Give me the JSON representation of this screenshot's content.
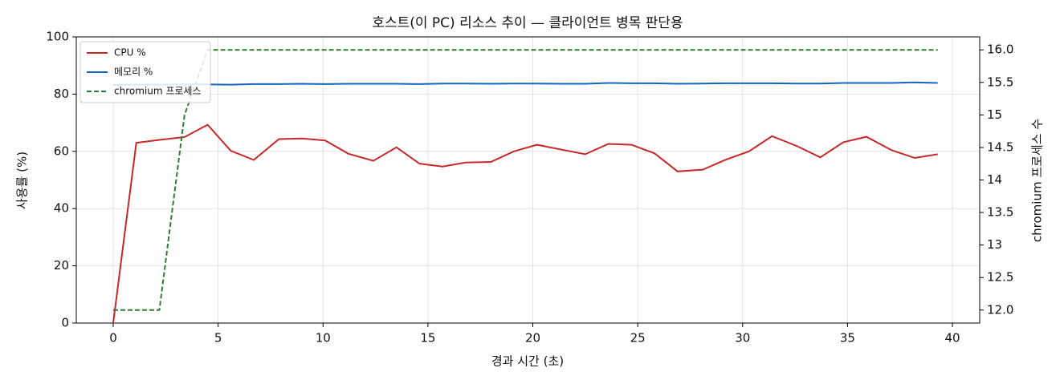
{
  "chart_data": {
    "type": "line",
    "title": "호스트(이 PC) 리소스 추이 — 클라이언트 병목 판단용",
    "xlabel": "경과 시간 (초)",
    "ylabel": "사용률 (%)",
    "y2label": "chromium 프로세스 수",
    "x": [
      0,
      1.1,
      2.2,
      3.4,
      4.5,
      5.6,
      6.7,
      7.9,
      9.0,
      10.1,
      11.2,
      12.4,
      13.5,
      14.6,
      15.7,
      16.8,
      18.0,
      19.1,
      20.2,
      21.3,
      22.5,
      23.6,
      24.7,
      25.8,
      26.9,
      28.1,
      29.2,
      30.3,
      31.4,
      32.6,
      33.7,
      34.8,
      35.9,
      37.1,
      38.2,
      39.3
    ],
    "series": [
      {
        "name": "CPU %",
        "color": "#c62828",
        "dashed": false,
        "values": [
          0,
          63,
          64,
          65,
          69.3,
          60.2,
          57,
          64.3,
          64.5,
          63.8,
          59.2,
          56.7,
          61.4,
          55.7,
          54.7,
          56.1,
          56.3,
          60,
          62.3,
          60.7,
          59,
          62.6,
          62.3,
          59.3,
          53,
          53.6,
          57.1,
          60,
          65.3,
          61.8,
          57.9,
          63.2,
          65.1,
          60.4,
          57.7,
          59
        ]
      },
      {
        "name": "메모리 %",
        "color": "#1565c0",
        "dashed": false,
        "values": [
          83.2,
          83.3,
          83.3,
          83.4,
          83.4,
          83.3,
          83.5,
          83.5,
          83.6,
          83.5,
          83.6,
          83.6,
          83.6,
          83.5,
          83.7,
          83.7,
          83.6,
          83.7,
          83.7,
          83.6,
          83.6,
          83.9,
          83.8,
          83.8,
          83.6,
          83.7,
          83.8,
          83.8,
          83.8,
          83.7,
          83.7,
          83.9,
          83.9,
          83.9,
          84.1,
          83.9
        ]
      },
      {
        "name": "chromium 프로세스",
        "color": "#2e7d32",
        "dashed": true,
        "axis": "y2",
        "values": [
          12,
          12,
          12,
          15,
          16,
          16,
          16,
          16,
          16,
          16,
          16,
          16,
          16,
          16,
          16,
          16,
          16,
          16,
          16,
          16,
          16,
          16,
          16,
          16,
          16,
          16,
          16,
          16,
          16,
          16,
          16,
          16,
          16,
          16,
          16,
          16
        ]
      }
    ],
    "xlim": [
      -1.76,
      41.3
    ],
    "xticks": [
      0,
      5,
      10,
      15,
      20,
      25,
      30,
      35,
      40
    ],
    "ylim": [
      0,
      100
    ],
    "yticks": [
      0,
      20,
      40,
      60,
      80,
      100
    ],
    "y2lim": [
      11.8,
      16.2
    ],
    "y2ticks": [
      {
        "value": 12,
        "label": "12.0"
      },
      12.5,
      13,
      13.5,
      14,
      14.5,
      15,
      15.5,
      {
        "value": 16,
        "label": "16.0"
      }
    ],
    "grid": true,
    "legend": "upper-left"
  }
}
